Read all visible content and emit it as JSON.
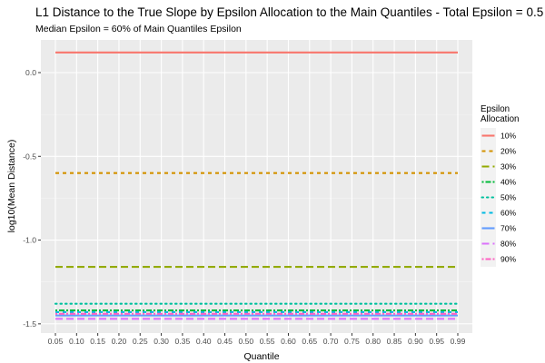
{
  "chart_data": {
    "type": "line",
    "title": "L1 Distance to the True Slope by Epsilon Allocation to the Main Quantiles - Total Epsilon = 0.5",
    "subtitle": "Median Epsilon = 60% of Main Quantiles Epsilon",
    "xlabel": "Quantile",
    "ylabel": "log10(Mean Distance)",
    "x_ticks": [
      "0.05",
      "0.10",
      "0.15",
      "0.20",
      "0.25",
      "0.30",
      "0.35",
      "0.40",
      "0.45",
      "0.50",
      "0.55",
      "0.60",
      "0.65",
      "0.70",
      "0.75",
      "0.80",
      "0.85",
      "0.90",
      "0.95",
      "0.99"
    ],
    "y_ticks": [
      0.0,
      -0.5,
      -1.0,
      -1.5
    ],
    "y_tick_labels": [
      "0.0",
      "-0.5",
      "-1.0",
      "-1.5"
    ],
    "ylim": [
      -1.555,
      0.195
    ],
    "grid": true,
    "legend": {
      "title_lines": [
        "Epsilon",
        "Allocation"
      ],
      "position": "right"
    },
    "series": [
      {
        "name": "10%",
        "color": "#F8766D",
        "dash": "solid",
        "values": [
          0.12,
          0.12,
          0.12,
          0.12,
          0.12,
          0.12,
          0.12,
          0.12,
          0.12,
          0.12,
          0.12,
          0.12,
          0.12,
          0.12,
          0.12,
          0.12,
          0.12,
          0.12,
          0.12,
          0.12
        ]
      },
      {
        "name": "20%",
        "color": "#D39200",
        "dash": "dashed",
        "values": [
          -0.6,
          -0.6,
          -0.6,
          -0.6,
          -0.6,
          -0.6,
          -0.6,
          -0.6,
          -0.6,
          -0.6,
          -0.6,
          -0.6,
          -0.6,
          -0.6,
          -0.6,
          -0.6,
          -0.6,
          -0.6,
          -0.6,
          -0.6
        ]
      },
      {
        "name": "30%",
        "color": "#93AA00",
        "dash": "longdash",
        "values": [
          -1.16,
          -1.16,
          -1.16,
          -1.16,
          -1.16,
          -1.16,
          -1.16,
          -1.16,
          -1.16,
          -1.16,
          -1.16,
          -1.16,
          -1.16,
          -1.16,
          -1.16,
          -1.16,
          -1.16,
          -1.16,
          -1.16,
          -1.16
        ]
      },
      {
        "name": "40%",
        "color": "#00BA38",
        "dash": "twodash",
        "values": [
          -1.42,
          -1.42,
          -1.42,
          -1.42,
          -1.42,
          -1.42,
          -1.42,
          -1.42,
          -1.42,
          -1.42,
          -1.42,
          -1.42,
          -1.42,
          -1.42,
          -1.42,
          -1.42,
          -1.42,
          -1.42,
          -1.42,
          -1.42
        ]
      },
      {
        "name": "50%",
        "color": "#00C19F",
        "dash": "dotted",
        "values": [
          -1.38,
          -1.38,
          -1.38,
          -1.38,
          -1.38,
          -1.38,
          -1.38,
          -1.38,
          -1.38,
          -1.38,
          -1.38,
          -1.38,
          -1.38,
          -1.38,
          -1.38,
          -1.38,
          -1.38,
          -1.38,
          -1.38,
          -1.38
        ]
      },
      {
        "name": "60%",
        "color": "#00B9E3",
        "dash": "dashed",
        "values": [
          -1.43,
          -1.43,
          -1.43,
          -1.43,
          -1.43,
          -1.43,
          -1.43,
          -1.43,
          -1.43,
          -1.43,
          -1.43,
          -1.43,
          -1.43,
          -1.43,
          -1.43,
          -1.43,
          -1.43,
          -1.43,
          -1.43,
          -1.43
        ]
      },
      {
        "name": "70%",
        "color": "#619CFF",
        "dash": "solid",
        "values": [
          -1.45,
          -1.45,
          -1.45,
          -1.45,
          -1.45,
          -1.45,
          -1.45,
          -1.45,
          -1.45,
          -1.45,
          -1.45,
          -1.45,
          -1.45,
          -1.45,
          -1.45,
          -1.45,
          -1.45,
          -1.45,
          -1.45,
          -1.45
        ]
      },
      {
        "name": "80%",
        "color": "#DB72FB",
        "dash": "longdash",
        "values": [
          -1.47,
          -1.47,
          -1.47,
          -1.47,
          -1.47,
          -1.47,
          -1.47,
          -1.47,
          -1.47,
          -1.47,
          -1.47,
          -1.47,
          -1.47,
          -1.47,
          -1.47,
          -1.47,
          -1.47,
          -1.47,
          -1.47,
          -1.47
        ]
      },
      {
        "name": "90%",
        "color": "#FF61C3",
        "dash": "twodash",
        "values": [
          -1.44,
          -1.44,
          -1.44,
          -1.44,
          -1.44,
          -1.44,
          -1.44,
          -1.44,
          -1.44,
          -1.44,
          -1.44,
          -1.44,
          -1.44,
          -1.44,
          -1.44,
          -1.44,
          -1.44,
          -1.44,
          -1.44,
          -1.44
        ]
      }
    ]
  }
}
